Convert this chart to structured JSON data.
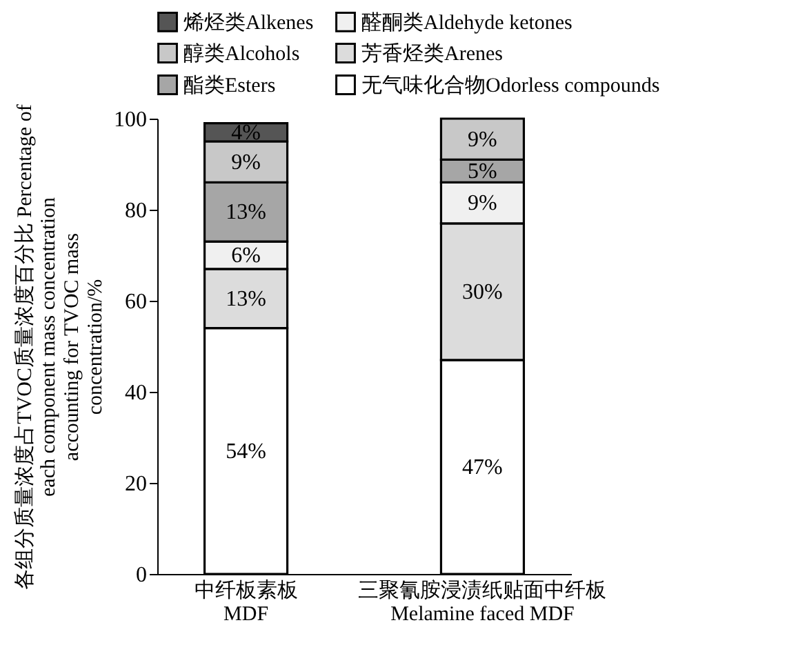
{
  "chart_data": {
    "type": "bar",
    "stacked": true,
    "ylabel": "各组分质量浓度占TVOC质量浓度百分比 Percentage of each component mass concentration accounting for TVOC mass concentration/%",
    "categories": [
      "中纤板素板 MDF",
      "三聚氰胺浸渍纸贴面中纤板 Melamine faced MDF"
    ],
    "series": [
      {
        "name": "无气味化合物Odorless compounds",
        "color": "#ffffff",
        "values": [
          54,
          47
        ],
        "value_labels": [
          "54%",
          "47%"
        ]
      },
      {
        "name": "芳香烃类Arenes",
        "color": "#dcdcdc",
        "values": [
          13,
          30
        ],
        "value_labels": [
          "13%",
          "30%"
        ]
      },
      {
        "name": "醛酮类Aldehyde ketones",
        "color": "#f0f0f0",
        "values": [
          6,
          9
        ],
        "value_labels": [
          "6%",
          "9%"
        ]
      },
      {
        "name": "酯类Esters",
        "color": "#a6a6a6",
        "values": [
          13,
          5
        ],
        "value_labels": [
          "13%",
          "5%"
        ]
      },
      {
        "name": "醇类Alcohols",
        "color": "#c8c8c8",
        "values": [
          9,
          9
        ],
        "value_labels": [
          "9%",
          "9%"
        ]
      },
      {
        "name": "烯烃类Alkenes",
        "color": "#555555",
        "values": [
          4,
          null
        ],
        "value_labels": [
          "4%",
          null
        ]
      }
    ],
    "ylim": [
      0,
      100
    ],
    "yticks": [
      0,
      20,
      40,
      60,
      80,
      100
    ],
    "grid": false,
    "legend": "top"
  }
}
